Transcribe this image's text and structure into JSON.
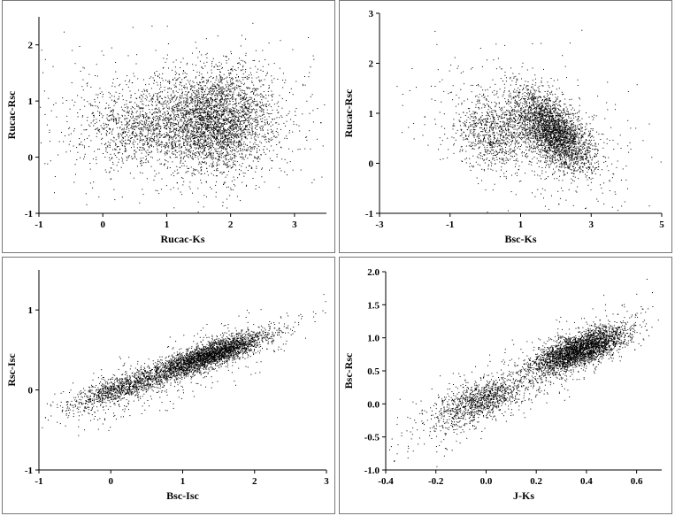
{
  "chart_data": [
    {
      "type": "scatter",
      "xlabel": "Rucac-Ks",
      "ylabel": "Rucac-Rsc",
      "xlim": [
        -1,
        3.5
      ],
      "ylim": [
        -1,
        2.5
      ],
      "xticks": [
        "-1",
        "0",
        "1",
        "2",
        "3"
      ],
      "xtick_values": [
        -1,
        0,
        1,
        2,
        3
      ],
      "yticks": [
        "-1",
        "0",
        "1",
        "2"
      ],
      "ytick_values": [
        -1,
        0,
        1,
        2
      ],
      "clusters": [
        {
          "cx": 1.75,
          "cy": 0.65,
          "sx": 0.45,
          "sy": 0.45,
          "n": 3200,
          "rho": 0.0
        },
        {
          "cx": 0.55,
          "cy": 0.55,
          "sx": 0.45,
          "sy": 0.35,
          "n": 900,
          "rho": 0.05
        },
        {
          "cx": 1.2,
          "cy": 0.6,
          "sx": 1.3,
          "sy": 0.75,
          "n": 600,
          "rho": 0.0
        }
      ]
    },
    {
      "type": "scatter",
      "xlabel": "Bsc-Ks",
      "ylabel": "Rucac-Rsc",
      "xlim": [
        -3,
        5
      ],
      "ylim": [
        -1,
        3
      ],
      "xticks": [
        "-3",
        "-1",
        "1",
        "3",
        "5"
      ],
      "xtick_values": [
        -3,
        -1,
        1,
        3,
        5
      ],
      "yticks": [
        "-1",
        "0",
        "1",
        "2",
        "3"
      ],
      "ytick_values": [
        -1,
        0,
        1,
        2,
        3
      ],
      "clusters": [
        {
          "cx": 1.9,
          "cy": 0.65,
          "sx": 0.55,
          "sy": 0.4,
          "n": 2900,
          "rho": -0.6
        },
        {
          "cx": 0.2,
          "cy": 0.6,
          "sx": 0.55,
          "sy": 0.35,
          "n": 800,
          "rho": -0.2
        },
        {
          "cx": 1.2,
          "cy": 0.7,
          "sx": 1.6,
          "sy": 0.8,
          "n": 500,
          "rho": -0.4
        }
      ]
    },
    {
      "type": "scatter",
      "xlabel": "Bsc-Isc",
      "ylabel": "Rsc-Isc",
      "xlim": [
        -1,
        3
      ],
      "ylim": [
        -1,
        1.5
      ],
      "xticks": [
        "-1",
        "0",
        "1",
        "2",
        "3"
      ],
      "xtick_values": [
        -1,
        0,
        1,
        2,
        3
      ],
      "yticks": [
        "-1",
        "0",
        "1"
      ],
      "ytick_values": [
        -1,
        0,
        1
      ],
      "clusters": [
        {
          "cx": 1.35,
          "cy": 0.43,
          "sx": 0.42,
          "sy": 0.15,
          "n": 2800,
          "rho": 0.85
        },
        {
          "cx": 0.1,
          "cy": 0.02,
          "sx": 0.35,
          "sy": 0.13,
          "n": 900,
          "rho": 0.8
        },
        {
          "cx": 0.9,
          "cy": 0.25,
          "sx": 0.85,
          "sy": 0.35,
          "n": 600,
          "rho": 0.85
        }
      ]
    },
    {
      "type": "scatter",
      "xlabel": "J-Ks",
      "ylabel": "Bsc-Rsc",
      "xlim": [
        -0.4,
        0.7
      ],
      "ylim": [
        -1.0,
        2.0
      ],
      "xticks": [
        "-0.4",
        "-0.2",
        "0.0",
        "0.2",
        "0.4",
        "0.6"
      ],
      "xtick_values": [
        -0.4,
        -0.2,
        0.0,
        0.2,
        0.4,
        0.6
      ],
      "yticks": [
        "-1.0",
        "-0.5",
        "0.0",
        "0.5",
        "1.0",
        "1.5",
        "2.0"
      ],
      "ytick_values": [
        -1.0,
        -0.5,
        0.0,
        0.5,
        1.0,
        1.5,
        2.0
      ],
      "clusters": [
        {
          "cx": 0.37,
          "cy": 0.82,
          "sx": 0.09,
          "sy": 0.17,
          "n": 2800,
          "rho": 0.7
        },
        {
          "cx": -0.03,
          "cy": 0.05,
          "sx": 0.09,
          "sy": 0.18,
          "n": 900,
          "rho": 0.6
        },
        {
          "cx": 0.15,
          "cy": 0.4,
          "sx": 0.25,
          "sy": 0.55,
          "n": 800,
          "rho": 0.9
        }
      ]
    }
  ],
  "style": {
    "point_color": "#000000",
    "axis_color": "#000000"
  }
}
